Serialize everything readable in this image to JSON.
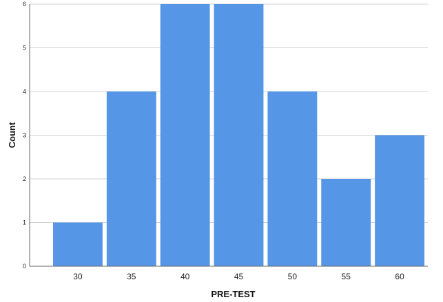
{
  "chart_data": {
    "type": "bar",
    "xlabel": "PRE-TEST",
    "ylabel": "Count",
    "categories": [
      "30",
      "35",
      "40",
      "45",
      "50",
      "55",
      "60"
    ],
    "values": [
      1,
      4,
      6,
      6,
      4,
      2,
      3
    ],
    "yticks": [
      "0",
      "1",
      "2",
      "3",
      "4",
      "5",
      "6"
    ],
    "ylim": [
      0,
      6
    ],
    "grid": true,
    "colors": {
      "bar": "#5596E6",
      "grid": "#D0D0D0",
      "axis": "#666666"
    }
  }
}
